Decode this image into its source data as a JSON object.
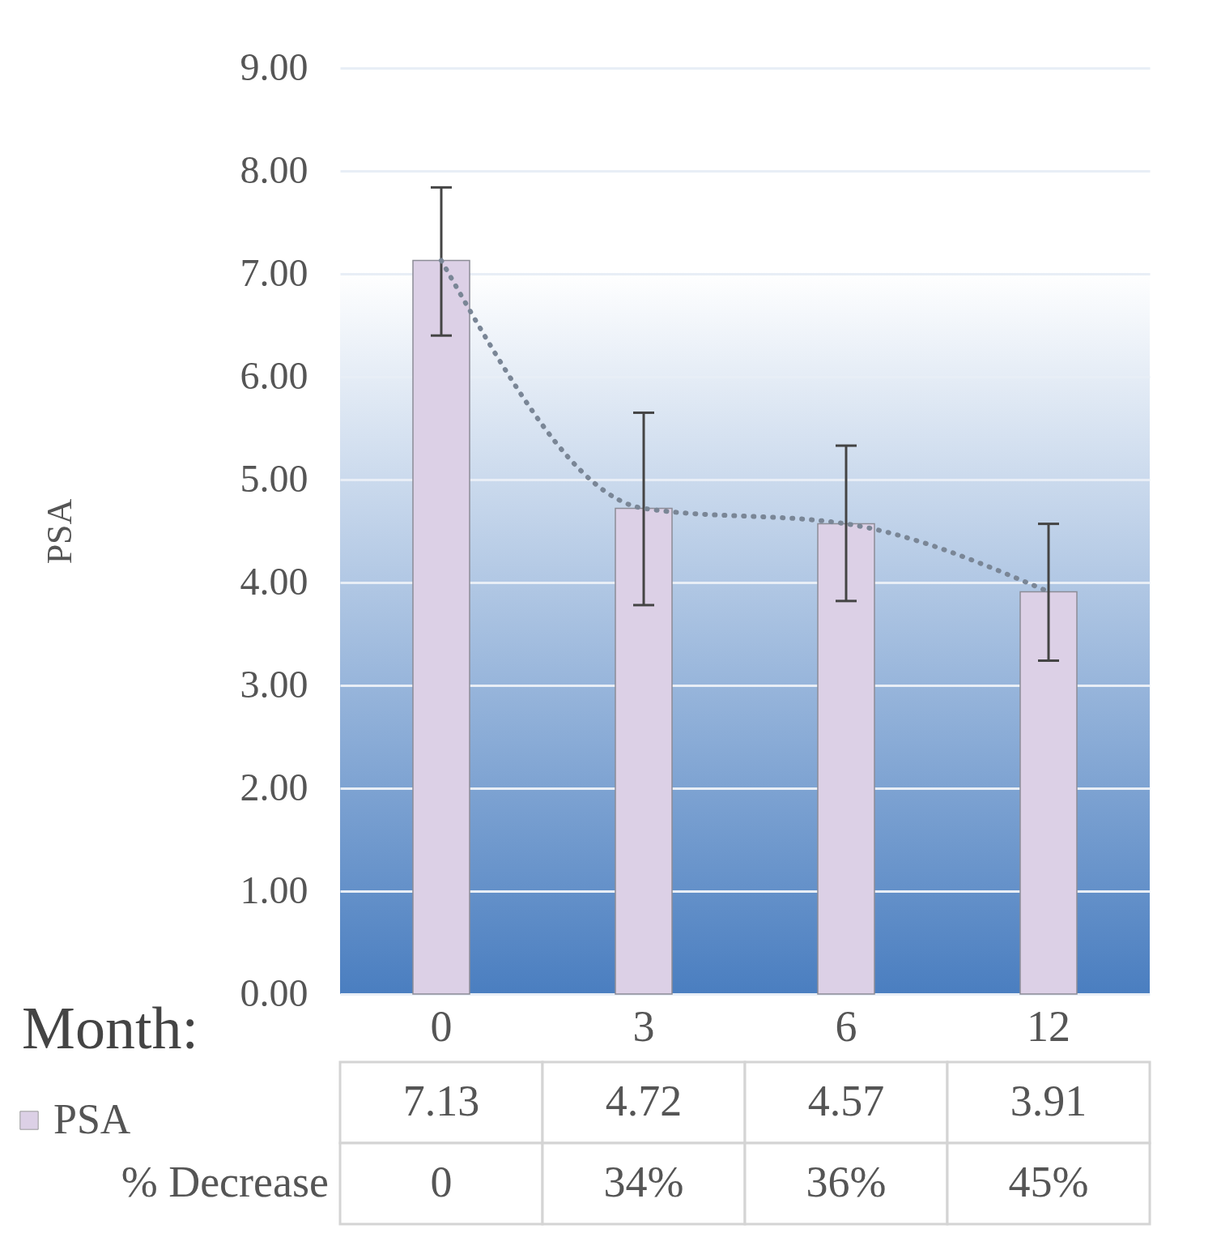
{
  "chart_data": {
    "type": "bar",
    "xlabel": "Month:",
    "ylabel": "PSA",
    "categories": [
      "0",
      "3",
      "6",
      "12"
    ],
    "series": [
      {
        "name": "PSA",
        "color": "#dcd0e6",
        "values": [
          7.13,
          4.72,
          4.57,
          3.91
        ],
        "value_labels": [
          "7.13",
          "4.72",
          "4.57",
          "3.91"
        ],
        "errors": [
          [
            6.4,
            7.84
          ],
          [
            3.78,
            5.65
          ],
          [
            3.82,
            5.33
          ],
          [
            3.24,
            4.57
          ]
        ]
      },
      {
        "type": "line",
        "color": "#7a8696",
        "values": [
          7.13,
          4.72,
          4.57,
          3.91
        ],
        "line_style": "dotted"
      }
    ],
    "ylim": [
      0,
      9
    ],
    "yticks": [
      {
        "value": 0,
        "label": "0.00"
      },
      {
        "value": 1,
        "label": "1.00"
      },
      {
        "value": 2,
        "label": "2.00"
      },
      {
        "value": 3,
        "label": "3.00"
      },
      {
        "value": 4,
        "label": "4.00"
      },
      {
        "value": 5,
        "label": "5.00"
      },
      {
        "value": 6,
        "label": "6.00"
      },
      {
        "value": 7,
        "label": "7.00"
      },
      {
        "value": 8,
        "label": "8.00"
      },
      {
        "value": 9,
        "label": "9.00"
      }
    ],
    "grid": true,
    "legend": "bottom left",
    "annotations": [
      "% Decrease",
      "0",
      "34%",
      "36%",
      "45%"
    ]
  }
}
